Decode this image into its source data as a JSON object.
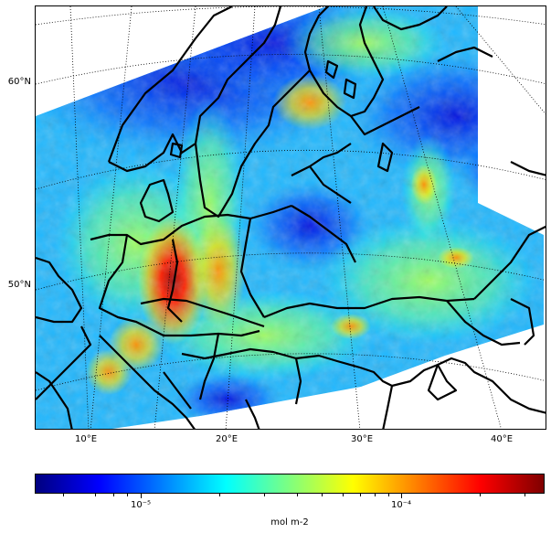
{
  "map": {
    "lat_labels": [
      "60°N",
      "50°N"
    ],
    "lon_labels": [
      "10°E",
      "20°E",
      "30°E",
      "40°E"
    ]
  },
  "colorbar": {
    "colormap": "jet",
    "scale": "log",
    "tick_labels": [
      "10⁻⁵",
      "10⁻⁴"
    ],
    "unit": "mol m-2",
    "colors": [
      "#00007f",
      "#0000ff",
      "#007fff",
      "#00ffff",
      "#7fff7f",
      "#ffff00",
      "#ff7f00",
      "#ff0000",
      "#7f0000"
    ]
  }
}
